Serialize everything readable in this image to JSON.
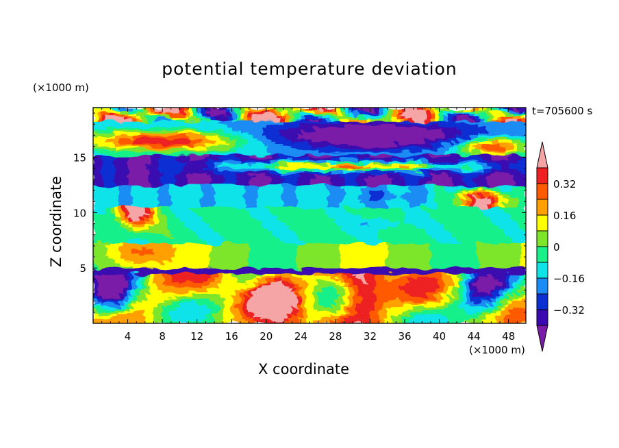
{
  "chart_data": {
    "type": "heatmap",
    "title": "potential temperature deviation",
    "xlabel": "X coordinate",
    "ylabel": "Z coordinate",
    "x_unit": "(×1000 m)",
    "y_unit": "(×1000 m)",
    "time_label": "t=705600 s",
    "xlim": [
      0,
      50
    ],
    "ylim": [
      0,
      19.5
    ],
    "x_ticks": [
      4,
      8,
      12,
      16,
      20,
      24,
      28,
      32,
      36,
      40,
      44,
      48
    ],
    "y_ticks": [
      5,
      10,
      15
    ],
    "colorbar": {
      "levels": [
        -0.4,
        -0.32,
        -0.24,
        -0.16,
        -0.08,
        0,
        0.08,
        0.16,
        0.24,
        0.32,
        0.4
      ],
      "tick_labels": [
        "0.32",
        "0.16",
        "0",
        "−0.16",
        "−0.32"
      ],
      "tick_values": [
        0.32,
        0.16,
        0,
        -0.16,
        -0.32
      ],
      "colors": [
        "#7a1ca8",
        "#3a0ab0",
        "#0a2fd2",
        "#1b8cf5",
        "#10e3e8",
        "#19f08a",
        "#7ee62a",
        "#ffff00",
        "#ffa000",
        "#ff5a00",
        "#ee2020",
        "#f5a5a5"
      ],
      "extend": "both"
    },
    "field_layers": [
      {
        "z_range": [
          18.0,
          19.5
        ],
        "value": 0.45,
        "note": "upper mix of pink and purple"
      },
      {
        "z_range": [
          13.0,
          15.0
        ],
        "value": -0.35
      },
      {
        "z_range": [
          11.0,
          12.5
        ],
        "value": -0.12
      },
      {
        "z_range": [
          7.5,
          10.5
        ],
        "value": -0.04
      },
      {
        "z_range": [
          5.0,
          7.0
        ],
        "value": 0.04
      },
      {
        "z_range": [
          0.0,
          5.0
        ],
        "value": 0.2,
        "note": "strong convective mixing"
      }
    ]
  }
}
